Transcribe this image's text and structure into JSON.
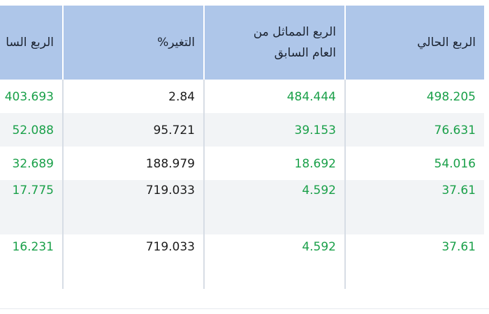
{
  "headers": [
    "الربع الحالي",
    "الربع المماثل من العام السابق",
    "التغير%",
    "الربع السا"
  ],
  "headers_lines": {
    "col1_line1": "الربع المماثل من",
    "col1_line2": "العام السابق"
  },
  "rows": [
    [
      "498.205",
      "484.444",
      "2.84",
      "403.693"
    ],
    [
      "76.631",
      "39.153",
      "95.721",
      "52.088"
    ],
    [
      "54.016",
      "18.692",
      "188.979",
      "32.689"
    ],
    [
      "37.61",
      "4.592",
      "719.033",
      "17.775"
    ],
    [
      "37.61",
      "4.592",
      "719.033",
      "16.231"
    ]
  ],
  "colors": {
    "header_bg": "#aec6e9",
    "value_green": "#1aa049",
    "value_dark": "#1c1c1c",
    "alt_row_bg": "#f2f4f6"
  }
}
